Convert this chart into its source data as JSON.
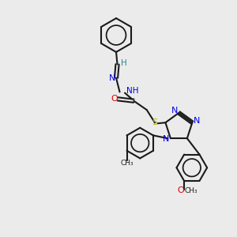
{
  "bg_color": "#ebebeb",
  "bond_color": "#1a1a1a",
  "N_color": "#0000ee",
  "O_color": "#dd0000",
  "S_color": "#bbaa00",
  "H_color": "#2a8888",
  "lw": 1.5,
  "figsize": [
    3.0,
    3.0
  ],
  "dpi": 100,
  "xlim": [
    0,
    10
  ],
  "ylim": [
    0,
    10
  ]
}
